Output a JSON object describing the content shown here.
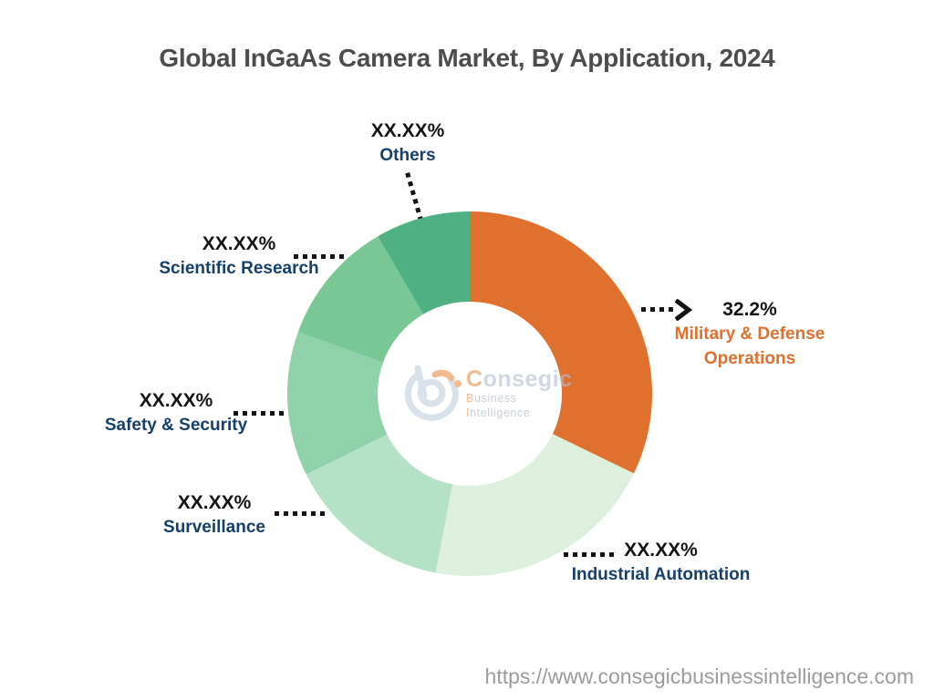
{
  "title": "Global InGaAs Camera Market, By Application, 2024",
  "footer": {
    "url": "https://www.consegicbusinessintelligence.com"
  },
  "colors": {
    "navy": "#173F6B",
    "orange": "#E0702E",
    "black": "#141414",
    "title_gray": "#4d4d4d",
    "url_gray": "#9b9b9b"
  },
  "logo": {
    "brand_first": "C",
    "brand_rest": "onsegic",
    "tagline_b": "B",
    "tagline_usiness": "usiness ",
    "tagline_i": "I",
    "tagline_ntelligence": "ntelligence"
  },
  "chart_data": {
    "type": "pie",
    "subtype": "donut",
    "title": "Global InGaAs Camera Market, By Application, 2024",
    "legend_position": "callout-labels",
    "center": [
      515,
      432
    ],
    "outer_radius": 200,
    "inner_radius": 101,
    "start_angle_deg": 0,
    "direction": "clockwise",
    "segments": [
      {
        "id": "military-defense-operations",
        "label": "Military & Defense Operations",
        "display_value": "32.2%",
        "value": 32.2,
        "color": "#E0702E"
      },
      {
        "id": "industrial-automation",
        "label": "Industrial Automation",
        "display_value": "XX.XX%",
        "value": 20.8,
        "color": "#DDF0DE"
      },
      {
        "id": "surveillance",
        "label": "Surveillance",
        "display_value": "XX.XX%",
        "value": 14.7,
        "color": "#B5E2C6"
      },
      {
        "id": "safety-security",
        "label": "Safety & Security",
        "display_value": "XX.XX%",
        "value": 12.8,
        "color": "#8FD1A9"
      },
      {
        "id": "scientific-research",
        "label": "Scientific Research",
        "display_value": "XX.XX%",
        "value": 11.1,
        "color": "#79C795"
      },
      {
        "id": "others",
        "label": "Others",
        "display_value": "XX.XX%",
        "value": 8.4,
        "color": "#4FB183"
      }
    ]
  }
}
